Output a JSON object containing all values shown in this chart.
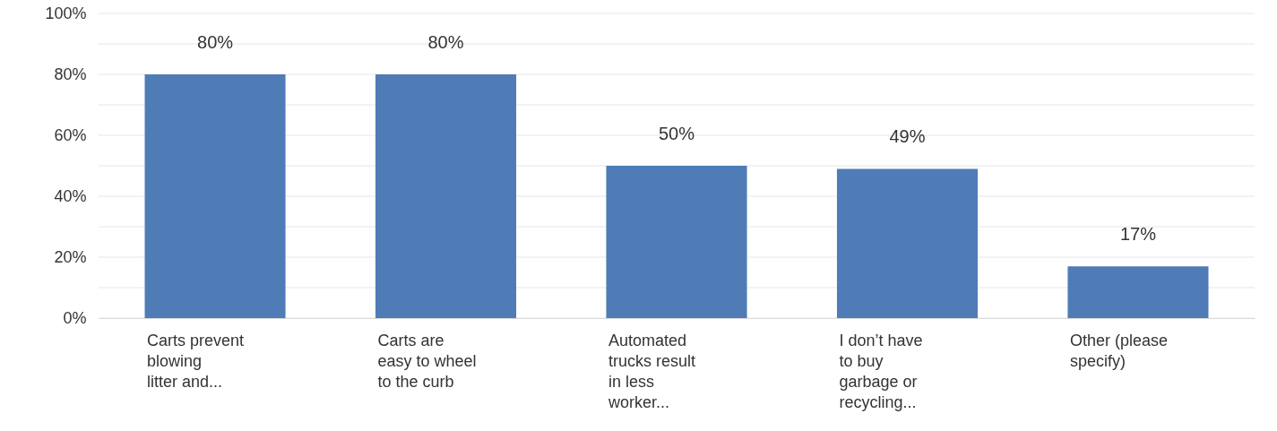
{
  "chart_data": {
    "type": "bar",
    "categories": [
      "Carts prevent blowing litter and...",
      "Carts are easy to wheel to the curb",
      "Automated trucks result in less worker...",
      "I don’t have to buy garbage or recycling...",
      "Other (please specify)"
    ],
    "values": [
      80,
      80,
      50,
      49,
      17
    ],
    "value_labels": [
      "80%",
      "80%",
      "50%",
      "49%",
      "17%"
    ],
    "color": "#4f7cb6",
    "ylim": [
      0,
      100
    ],
    "yticks": [
      {
        "value": 0,
        "label": "0%"
      },
      {
        "value": 10,
        "label": null
      },
      {
        "value": 20,
        "label": "20%"
      },
      {
        "value": 30,
        "label": null
      },
      {
        "value": 40,
        "label": "40%"
      },
      {
        "value": 50,
        "label": null
      },
      {
        "value": 60,
        "label": "60%"
      },
      {
        "value": 70,
        "label": null
      },
      {
        "value": 80,
        "label": "80%"
      },
      {
        "value": 90,
        "label": null
      },
      {
        "value": 100,
        "label": "100%"
      }
    ],
    "grid": true
  }
}
